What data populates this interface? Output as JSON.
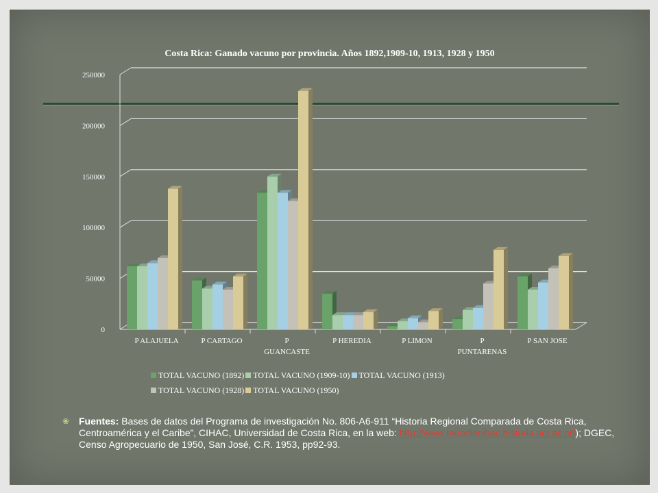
{
  "slide": {
    "background": "#72776c",
    "sources": {
      "label": "Fuentes:",
      "text_before": " Bases de datos del Programa de investigación No. 806-A6-911 “Historia Regional Comparada de Costa Rica, Centroamérica y el Caribe”, CIHAC, Universidad de Costa Rica, en la web: ",
      "link": "http://www.moodlecihac.historia.ucr.ac.cr/",
      "text_after": "); DGEC, Censo Agropecuario de 1950, San José, C.R. 1953, pp92-93."
    }
  },
  "chart_data": {
    "type": "bar",
    "title": "Costa Rica: Ganado vacuno por provincia. Años 1892,1909-10, 1913, 1928 y 1950",
    "categories": [
      "P ALAJUELA",
      "P CARTAGO",
      "P GUANCASTE",
      "P HEREDIA",
      "P LIMON",
      "P PUNTARENAS",
      "P SAN JOSE"
    ],
    "category_lines": [
      [
        "P ALAJUELA"
      ],
      [
        "P CARTAGO"
      ],
      [
        "P",
        "GUANCASTE"
      ],
      [
        "P HEREDIA"
      ],
      [
        "P LIMON"
      ],
      [
        "P",
        "PUNTARENAS"
      ],
      [
        "P SAN JOSE"
      ]
    ],
    "series": [
      {
        "name": "TOTAL VACUNO (1892)",
        "color": "#6aa36a",
        "values": [
          62000,
          48000,
          134000,
          35000,
          3000,
          10000,
          52000
        ]
      },
      {
        "name": "TOTAL VACUNO (1909-10)",
        "color": "#a9ceac",
        "values": [
          62000,
          40000,
          150000,
          14000,
          8000,
          19000,
          39000
        ]
      },
      {
        "name": "TOTAL VACUNO (1913)",
        "color": "#a5cfe2",
        "values": [
          65000,
          44000,
          134000,
          14000,
          11000,
          21000,
          46000
        ]
      },
      {
        "name": "TOTAL VACUNO (1928)",
        "color": "#c4c1b8",
        "values": [
          70000,
          39000,
          126000,
          14000,
          7000,
          45000,
          60000
        ]
      },
      {
        "name": "TOTAL VACUNO (1950)",
        "color": "#d9cb98",
        "values": [
          138000,
          52000,
          234000,
          17000,
          18000,
          78000,
          72000
        ]
      }
    ],
    "yticks": [
      "0",
      "50000",
      "100000",
      "150000",
      "200000",
      "250000"
    ],
    "ylim": [
      0,
      250000
    ],
    "grid": true,
    "legend": "bottom"
  }
}
